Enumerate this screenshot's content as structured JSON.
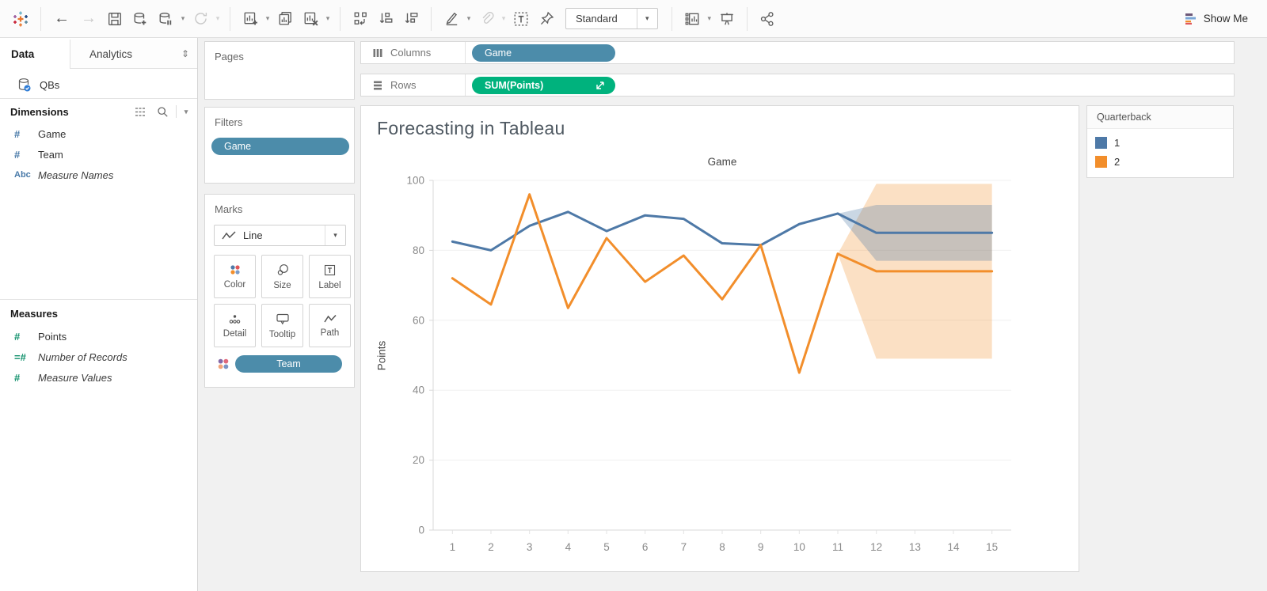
{
  "icons": {
    "back_arrow": "←",
    "forward_arrow": "→",
    "caret_down": "▾",
    "analytics_sort_glyph": "⇕"
  },
  "toolbar": {
    "fit_selector_value": "Standard",
    "show_me_label": "Show Me"
  },
  "sidebar": {
    "tabs": {
      "data": "Data",
      "analytics": "Analytics"
    },
    "datasource": "QBs",
    "dimensions": {
      "header": "Dimensions",
      "items": [
        {
          "prefix": "#",
          "label": "Game"
        },
        {
          "prefix": "#",
          "label": "Team"
        },
        {
          "prefix": "Abc",
          "label": "Measure Names"
        }
      ]
    },
    "measures": {
      "header": "Measures",
      "items": [
        {
          "prefix": "#",
          "label": "Points"
        },
        {
          "prefix": "=#",
          "label": "Number of Records"
        },
        {
          "prefix": "#",
          "label": "Measure Values"
        }
      ]
    }
  },
  "cards": {
    "pages": {
      "title": "Pages"
    },
    "filters": {
      "title": "Filters",
      "pill": "Game"
    },
    "marks": {
      "title": "Marks",
      "mark_type": "Line",
      "buttons": [
        "Color",
        "Size",
        "Label",
        "Detail",
        "Tooltip",
        "Path"
      ],
      "pill": "Team"
    }
  },
  "shelves": {
    "columns": {
      "label": "Columns",
      "pill": "Game"
    },
    "rows": {
      "label": "Rows",
      "pill": "SUM(Points)"
    }
  },
  "worksheet": {
    "title": "Forecasting in Tableau",
    "top_axis_label": "Game",
    "y_axis_label": "Points"
  },
  "legend": {
    "title": "Quarterback",
    "items": [
      {
        "label": "1",
        "color": "#4e79a7"
      },
      {
        "label": "2",
        "color": "#f28e2b"
      }
    ]
  },
  "colors": {
    "dimension_pill": "#4c8caa",
    "measure_pill": "#00b27d",
    "series1": "#4e79a7",
    "series2": "#f28e2b"
  },
  "chart_data": {
    "type": "line",
    "title": "Forecasting in Tableau",
    "x_axis_label": "Game",
    "y_axis_label": "Points",
    "x": [
      1,
      2,
      3,
      4,
      5,
      6,
      7,
      8,
      9,
      10,
      11,
      12,
      13,
      14,
      15
    ],
    "xlim": [
      0.5,
      15.5
    ],
    "ylim": [
      0,
      100
    ],
    "yticks": [
      0,
      20,
      40,
      60,
      80,
      100
    ],
    "grid": "horizontal",
    "legend_title": "Quarterback",
    "legend_position": "outside-top-right",
    "forecast_start_x": 11,
    "series": [
      {
        "name": "1",
        "color": "#4e79a7",
        "band_color": "rgba(78,121,167,0.30)",
        "actual_x": [
          1,
          2,
          3,
          4,
          5,
          6,
          7,
          8,
          9,
          10,
          11
        ],
        "actual_y": [
          82.5,
          80,
          87,
          91,
          85.5,
          90,
          89,
          82,
          81.5,
          87.5,
          90.5
        ],
        "forecast_x": [
          11,
          12,
          13,
          14,
          15
        ],
        "forecast_y": [
          90.5,
          85,
          85,
          85,
          85
        ],
        "band_x": [
          11,
          12,
          15
        ],
        "band_upper": [
          90.5,
          93,
          93
        ],
        "band_lower": [
          90.5,
          77,
          77
        ]
      },
      {
        "name": "2",
        "color": "#f28e2b",
        "band_color": "rgba(242,142,43,0.28)",
        "actual_x": [
          1,
          2,
          3,
          4,
          5,
          6,
          7,
          8,
          9,
          10,
          11
        ],
        "actual_y": [
          72,
          64.5,
          96,
          63.5,
          83.5,
          71,
          78.5,
          66,
          81.5,
          45,
          79
        ],
        "forecast_x": [
          11,
          12,
          13,
          14,
          15
        ],
        "forecast_y": [
          79,
          74,
          74,
          74,
          74
        ],
        "band_x": [
          11,
          12,
          15
        ],
        "band_upper": [
          79,
          99,
          99
        ],
        "band_lower": [
          79,
          49,
          49
        ]
      }
    ]
  }
}
